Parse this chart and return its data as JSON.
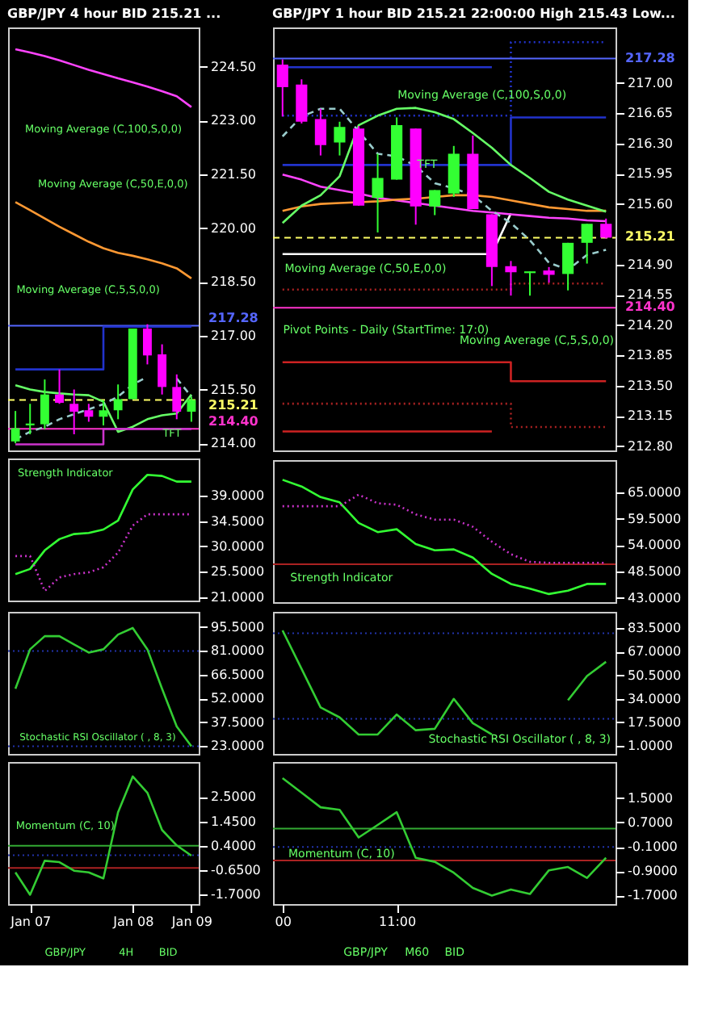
{
  "chart_data": [
    {
      "type": "candlestick",
      "title": "GBP/JPY 4 hour BID 215.21 ...",
      "tick_labels": "y",
      "categories": [
        null,
        null,
        null,
        null,
        null,
        null,
        null,
        null,
        null,
        null,
        null,
        null,
        null
      ],
      "ohlc": [
        [
          214.05,
          214.9,
          214.0,
          214.42
        ],
        [
          214.5,
          215.1,
          214.25,
          214.55
        ],
        [
          214.53,
          215.78,
          214.39,
          215.36
        ],
        [
          215.36,
          216.06,
          215.1,
          215.13
        ],
        [
          215.1,
          215.5,
          214.25,
          214.88
        ],
        [
          214.92,
          215.1,
          214.6,
          214.74
        ],
        [
          214.74,
          215.2,
          214.5,
          214.92
        ],
        [
          214.92,
          215.64,
          214.67,
          215.23
        ],
        [
          215.23,
          217.2,
          215.23,
          217.2
        ],
        [
          217.2,
          217.32,
          216.2,
          216.45
        ],
        [
          216.48,
          216.76,
          215.36,
          215.57
        ],
        [
          215.57,
          215.92,
          214.67,
          214.88
        ],
        [
          214.88,
          215.3,
          214.6,
          215.21
        ]
      ],
      "colors": [
        "#33ff33",
        "#33ff33",
        "#33ff33",
        "#ff00ff",
        "#ff00ff",
        "#ff00ff",
        "#33ff33",
        "#33ff33",
        "#33ff33",
        "#ff00ff",
        "#ff00ff",
        "#ff00ff",
        "#33ff33"
      ],
      "series": [
        {
          "type": "line",
          "color": "#ff44ff",
          "values": [
            224.99,
            224.9,
            224.8,
            224.68,
            224.55,
            224.42,
            224.3,
            224.18,
            224.07,
            223.95,
            223.82,
            223.68,
            223.38
          ]
        },
        {
          "type": "line",
          "color": "#ff9933",
          "values": [
            220.73,
            220.5,
            220.27,
            220.04,
            219.83,
            219.62,
            219.44,
            219.31,
            219.23,
            219.13,
            219.02,
            218.88,
            218.6
          ]
        },
        {
          "type": "line",
          "color": "#66ff66",
          "values": [
            215.62,
            215.5,
            215.43,
            215.39,
            215.36,
            215.34,
            215.16,
            214.32,
            214.46,
            214.67,
            214.78,
            214.83,
            215.36
          ]
        },
        {
          "type": "line",
          "color": "#99cccc",
          "line_style": "dashed",
          "values": [
            214.11,
            214.32,
            214.46,
            214.67,
            214.81,
            214.95,
            215.09,
            215.3,
            215.64,
            215.85,
            null,
            215.81,
            215.3
          ]
        },
        {
          "type": "step",
          "color": "#2233cc",
          "values": [
            216.06,
            216.06,
            216.06,
            216.06,
            216.06,
            216.06,
            217.25,
            217.25,
            217.25,
            217.25,
            217.25,
            217.25,
            217.25
          ]
        },
        {
          "type": "step",
          "color": "#cc33cc",
          "values": [
            213.97,
            213.97,
            213.97,
            213.97,
            213.97,
            213.97,
            214.4,
            214.4,
            214.4,
            214.4,
            214.4,
            214.4,
            214.4
          ]
        }
      ],
      "ylim": [
        213.8,
        225.6
      ],
      "yticks": [
        {
          "value": 214,
          "label": "214.00"
        },
        {
          "value": 215.5,
          "label": "215.50"
        },
        {
          "value": 217,
          "label": "217.00"
        },
        {
          "value": 218.5,
          "label": "218.50"
        },
        {
          "value": 220,
          "label": "220.00"
        },
        {
          "value": 221.5,
          "label": "221.50"
        },
        {
          "value": 223,
          "label": "223.00"
        },
        {
          "value": 224.5,
          "label": "224.50"
        }
      ],
      "ref_lines": [
        {
          "axis": "y",
          "value": 217.28,
          "label": "217.28",
          "color": "#5566ff"
        },
        {
          "axis": "y",
          "value": 215.21,
          "label": "215.21",
          "color": "#ffff66",
          "line_style": "dashed"
        },
        {
          "axis": "y",
          "value": 214.4,
          "label": "214.40",
          "color": "#ff33cc"
        }
      ],
      "annotations": [
        "Moving Average (C,100,S,0,0)",
        "Moving Average (C,50,E,0,0)",
        "Moving Average (C,5,S,0,0)",
        "TFT"
      ]
    },
    {
      "type": "line",
      "tick_labels": "y",
      "categories": [
        null,
        null,
        null,
        null,
        null,
        null,
        null,
        null,
        null,
        null,
        null,
        null,
        null
      ],
      "series": [
        {
          "color": "#33ff33",
          "values": [
            25.1,
            26.0,
            29.3,
            31.3,
            32.2,
            32.4,
            33.0,
            34.6,
            40.1,
            42.7,
            42.5,
            41.5,
            41.5
          ]
        },
        {
          "color": "#cc33cc",
          "line_style": "dotted",
          "values": [
            28.3,
            28.3,
            22.1,
            24.5,
            25.1,
            25.4,
            26.3,
            28.9,
            33.7,
            35.7,
            35.7,
            35.7,
            35.7
          ]
        }
      ],
      "ylim": [
        20.4,
        45.6
      ],
      "yticks": [
        {
          "value": 21,
          "label": "21.0000"
        },
        {
          "value": 25.5,
          "label": "25.5000"
        },
        {
          "value": 30,
          "label": "30.0000"
        },
        {
          "value": 34.5,
          "label": "34.5000"
        },
        {
          "value": 39,
          "label": "39.0000"
        }
      ],
      "annotations": [
        "Strength Indicator"
      ]
    },
    {
      "type": "line",
      "tick_labels": "y",
      "categories": [
        null,
        null,
        null,
        null,
        null,
        null,
        null,
        null,
        null,
        null,
        null,
        null,
        null
      ],
      "series": [
        {
          "color": "#33cc33",
          "values": [
            58,
            82,
            90,
            90,
            85,
            80,
            82,
            91,
            95,
            82,
            58,
            35,
            23
          ]
        }
      ],
      "ylim": [
        18.3,
        104.8
      ],
      "yticks": [
        {
          "value": 23,
          "label": "23.0000"
        },
        {
          "value": 37.5,
          "label": "37.5000"
        },
        {
          "value": 52,
          "label": "52.0000"
        },
        {
          "value": 66.5,
          "label": "66.5000"
        },
        {
          "value": 81,
          "label": "81.0000"
        },
        {
          "value": 95.5,
          "label": "95.5000"
        }
      ],
      "ref_lines": [
        {
          "axis": "y",
          "value": 81,
          "color": "#2233aa",
          "line_style": "dotted"
        },
        {
          "axis": "y",
          "value": 23,
          "color": "#2233aa",
          "line_style": "dotted"
        }
      ],
      "annotations": [
        "Stochastic RSI Oscillator ( , 8, 3)"
      ]
    },
    {
      "type": "line",
      "categories": [
        null,
        "Jan 07",
        null,
        null,
        null,
        null,
        null,
        null,
        "Jan 08",
        null,
        null,
        null,
        "Jan 09"
      ],
      "series": [
        {
          "color": "#33cc33",
          "values": [
            -0.74,
            -1.7,
            -0.24,
            -0.3,
            -0.67,
            -0.74,
            -1.0,
            1.84,
            3.38,
            2.68,
            1.08,
            0.42,
            -0.02
          ]
        }
      ],
      "ylim": [
        -2.1,
        4.0
      ],
      "yticks": [
        {
          "value": -1.7,
          "label": "-1.7000"
        },
        {
          "value": -0.65,
          "label": "-0.6500"
        },
        {
          "value": 0.4,
          "label": "0.4000"
        },
        {
          "value": 1.45,
          "label": "1.4500"
        },
        {
          "value": 2.5,
          "label": "2.5000"
        }
      ],
      "ref_lines": [
        {
          "axis": "y",
          "value": 0.4,
          "color": "#33aa33"
        },
        {
          "axis": "y",
          "value": -0.55,
          "color": "#aa2222"
        },
        {
          "axis": "y",
          "value": 0.0,
          "color": "#2233aa",
          "line_style": "dotted"
        }
      ],
      "annotations": [
        "Momentum (C, 10)",
        "GBP/JPY",
        "4H",
        "BID"
      ]
    },
    {
      "type": "candlestick",
      "title": "GBP/JPY 1 hour BID 215.21 22:00:00 High 215.43 Low...",
      "tick_labels": "y",
      "categories": [
        null,
        null,
        null,
        null,
        null,
        null,
        null,
        null,
        null,
        null,
        null,
        null,
        null,
        null,
        null,
        null,
        null,
        null
      ],
      "ohlc": [
        [
          217.21,
          217.27,
          216.61,
          216.95
        ],
        [
          216.98,
          217.04,
          216.53,
          216.55
        ],
        [
          216.58,
          216.7,
          216.16,
          216.28
        ],
        [
          216.31,
          216.55,
          216.16,
          216.49
        ],
        [
          216.47,
          216.5,
          215.58,
          215.58
        ],
        [
          215.67,
          216.18,
          215.27,
          215.9
        ],
        [
          215.88,
          216.6,
          215.88,
          216.51
        ],
        [
          216.47,
          216.47,
          215.36,
          215.57
        ],
        [
          215.57,
          215.76,
          215.47,
          215.76
        ],
        [
          215.72,
          216.27,
          215.68,
          216.18
        ],
        [
          216.18,
          216.39,
          215.54,
          215.54
        ],
        [
          215.48,
          215.48,
          214.65,
          214.87
        ],
        [
          214.88,
          214.94,
          214.54,
          214.81
        ],
        [
          214.8,
          214.82,
          214.54,
          214.82
        ],
        [
          214.83,
          214.87,
          214.69,
          214.78
        ],
        [
          214.79,
          215.15,
          214.6,
          215.15
        ],
        [
          215.15,
          215.37,
          214.91,
          215.37
        ],
        [
          215.37,
          215.43,
          215.2,
          215.21
        ]
      ],
      "colors": [
        "#ff00ff",
        "#ff00ff",
        "#ff00ff",
        "#33ff33",
        "#ff00ff",
        "#33ff33",
        "#33ff33",
        "#ff00ff",
        "#33ff33",
        "#33ff33",
        "#ff00ff",
        "#ff00ff",
        "#ff00ff",
        "#33ff33",
        "#ff00ff",
        "#33ff33",
        "#33ff33",
        "#ff00ff"
      ],
      "series": [
        {
          "type": "step",
          "color": "#2233cc",
          "values": [
            217.18,
            217.18,
            217.18,
            217.18,
            217.18,
            217.18,
            217.18,
            217.18,
            217.18,
            217.18,
            217.18,
            217.18,
            null,
            null,
            null,
            null,
            null,
            null
          ]
        },
        {
          "type": "step",
          "color": "#2233cc",
          "values": [
            216.05,
            216.05,
            216.05,
            216.05,
            216.05,
            216.05,
            216.05,
            216.05,
            216.05,
            216.05,
            216.05,
            216.05,
            216.6,
            216.6,
            216.6,
            216.6,
            216.6,
            216.6
          ]
        },
        {
          "type": "step",
          "color": "#2233cc",
          "line_style": "dotted",
          "values": [
            216.62,
            216.62,
            216.62,
            216.62,
            216.62,
            216.62,
            216.62,
            216.62,
            216.62,
            216.62,
            216.62,
            216.62,
            217.47,
            217.47,
            217.47,
            217.47,
            217.47,
            217.47
          ]
        },
        {
          "type": "step",
          "color": "#aa2222",
          "line_style": "dotted",
          "values": [
            214.61,
            214.61,
            214.61,
            214.61,
            214.61,
            214.61,
            214.61,
            214.61,
            214.61,
            214.61,
            214.61,
            214.61,
            214.68,
            214.68,
            214.68,
            214.68,
            214.68,
            214.68
          ]
        },
        {
          "type": "step",
          "color": "#cc2222",
          "values": [
            213.77,
            213.77,
            213.77,
            213.77,
            213.77,
            213.77,
            213.77,
            213.77,
            213.77,
            213.77,
            213.77,
            213.77,
            213.55,
            213.55,
            213.55,
            213.55,
            213.55,
            213.55
          ]
        },
        {
          "type": "step",
          "color": "#aa2222",
          "line_style": "dotted",
          "values": [
            213.29,
            213.29,
            213.29,
            213.29,
            213.29,
            213.29,
            213.29,
            213.29,
            213.29,
            213.29,
            213.29,
            213.29,
            213.02,
            213.02,
            213.02,
            213.02,
            213.02,
            213.02
          ]
        },
        {
          "type": "step",
          "color": "#cc2222",
          "values": [
            212.97,
            212.97,
            212.97,
            212.97,
            212.97,
            212.97,
            212.97,
            212.97,
            212.97,
            212.97,
            212.97,
            212.97,
            null,
            null,
            null,
            null,
            null,
            null
          ]
        },
        {
          "type": "line",
          "color": "#ffffff",
          "values": [
            215.02,
            215.02,
            215.02,
            215.02,
            215.02,
            215.02,
            215.02,
            215.02,
            215.02,
            215.02,
            215.02,
            215.02,
            215.49,
            null,
            null,
            null,
            null,
            null
          ]
        },
        {
          "type": "line",
          "color": "#ff44ff",
          "values": [
            215.94,
            215.88,
            215.8,
            215.76,
            215.72,
            215.67,
            215.64,
            215.61,
            215.58,
            215.55,
            215.52,
            215.5,
            215.48,
            215.46,
            215.44,
            215.43,
            215.41,
            215.4
          ]
        },
        {
          "type": "line",
          "color": "#ff9933",
          "values": [
            215.52,
            215.57,
            215.6,
            215.61,
            215.62,
            215.63,
            215.65,
            215.66,
            215.68,
            215.7,
            215.7,
            215.68,
            215.64,
            215.6,
            215.56,
            215.54,
            215.52,
            215.52
          ]
        },
        {
          "type": "line",
          "color": "#66ff66",
          "values": [
            215.38,
            215.58,
            215.7,
            215.92,
            216.51,
            216.62,
            216.7,
            216.71,
            216.66,
            216.58,
            216.42,
            216.25,
            216.05,
            215.9,
            215.74,
            215.65,
            215.58,
            215.51
          ]
        },
        {
          "type": "line",
          "color": "#99cccc",
          "line_style": "dashed",
          "values": [
            216.38,
            216.61,
            216.7,
            216.7,
            216.44,
            216.18,
            216.15,
            216.04,
            215.84,
            215.78,
            215.7,
            215.52,
            215.38,
            215.18,
            214.92,
            214.84,
            215.01,
            215.07
          ]
        }
      ],
      "ylim": [
        212.75,
        217.64
      ],
      "yticks": [
        {
          "value": 212.8,
          "label": "212.80"
        },
        {
          "value": 213.15,
          "label": "213.15"
        },
        {
          "value": 213.5,
          "label": "213.50"
        },
        {
          "value": 213.85,
          "label": "213.85"
        },
        {
          "value": 214.2,
          "label": "214.20"
        },
        {
          "value": 214.55,
          "label": "214.55"
        },
        {
          "value": 214.9,
          "label": "214.90"
        },
        {
          "value": 215.6,
          "label": "215.60"
        },
        {
          "value": 215.95,
          "label": "215.95"
        },
        {
          "value": 216.3,
          "label": "216.30"
        },
        {
          "value": 216.65,
          "label": "216.65"
        },
        {
          "value": 217,
          "label": "217.00"
        }
      ],
      "ref_lines": [
        {
          "axis": "y",
          "value": 217.28,
          "label": "217.28",
          "color": "#5566ff"
        },
        {
          "axis": "y",
          "value": 215.21,
          "label": "215.21",
          "color": "#ffff66",
          "line_style": "dashed"
        },
        {
          "axis": "y",
          "value": 214.4,
          "label": "214.40",
          "color": "#ff33cc"
        }
      ],
      "annotations": [
        "Moving Average (C,100,S,0,0)",
        "Moving Average (C,50,E,0,0)",
        "Pivot Points - Daily (StartTime: 17:0)",
        "Moving Average (C,5,S,0,0)",
        "TFT"
      ]
    },
    {
      "type": "line",
      "tick_labels": "y",
      "categories": [
        null,
        null,
        null,
        null,
        null,
        null,
        null,
        null,
        null,
        null,
        null,
        null,
        null,
        null,
        null,
        null,
        null,
        null
      ],
      "series": [
        {
          "color": "#33ff33",
          "values": [
            67.6,
            66.2,
            64.0,
            62.9,
            58.6,
            56.7,
            57.3,
            54.2,
            52.9,
            53.1,
            51.4,
            48.0,
            45.9,
            44.9,
            43.8,
            44.5,
            45.9,
            45.9
          ]
        },
        {
          "color": "#cc33cc",
          "line_style": "dotted",
          "values": [
            62.1,
            62.1,
            62.1,
            62.1,
            64.5,
            62.7,
            62.4,
            60.4,
            59.3,
            59.3,
            57.8,
            54.7,
            52.1,
            50.5,
            50.3,
            50.3,
            50.3,
            50.3
          ]
        }
      ],
      "ylim": [
        42.1,
        71.7
      ],
      "yticks": [
        {
          "value": 43,
          "label": "43.0000"
        },
        {
          "value": 48.5,
          "label": "48.5000"
        },
        {
          "value": 54,
          "label": "54.0000"
        },
        {
          "value": 59.5,
          "label": "59.5000"
        },
        {
          "value": 65,
          "label": "65.0000"
        }
      ],
      "ref_lines": [
        {
          "axis": "y",
          "value": 50,
          "color": "#aa2222"
        }
      ],
      "annotations": [
        "Strength Indicator"
      ]
    },
    {
      "type": "line",
      "tick_labels": "y",
      "categories": [
        null,
        null,
        null,
        null,
        null,
        null,
        null,
        null,
        null,
        null,
        null,
        null,
        null,
        null,
        null,
        null,
        null,
        null
      ],
      "series": [
        {
          "color": "#33cc33",
          "values": [
            82,
            55,
            28,
            21,
            9,
            9,
            23,
            12,
            13,
            34,
            17,
            9,
            null,
            null,
            null,
            33,
            50,
            60
          ]
        }
      ],
      "ylim": [
        -4.6,
        95
      ],
      "yticks": [
        {
          "value": 1,
          "label": "1.0000"
        },
        {
          "value": 17.5,
          "label": "17.5000"
        },
        {
          "value": 34,
          "label": "34.0000"
        },
        {
          "value": 50.5,
          "label": "50.5000"
        },
        {
          "value": 67,
          "label": "67.0000"
        },
        {
          "value": 83.5,
          "label": "83.5000"
        }
      ],
      "ref_lines": [
        {
          "axis": "y",
          "value": 80,
          "color": "#2233aa",
          "line_style": "dotted"
        },
        {
          "axis": "y",
          "value": 20,
          "color": "#2233aa",
          "line_style": "dotted"
        }
      ],
      "annotations": [
        "Stochastic RSI Oscillator ( , 8, 3)"
      ]
    },
    {
      "type": "line",
      "categories": [
        "00",
        null,
        null,
        null,
        null,
        null,
        "11:00",
        null,
        null,
        null,
        null,
        null,
        null,
        null,
        null,
        null,
        null,
        null
      ],
      "series": [
        {
          "color": "#33cc33",
          "values": [
            2.16,
            1.68,
            1.2,
            1.12,
            0.21,
            0.62,
            1.04,
            -0.46,
            -0.59,
            -0.95,
            -1.45,
            -1.7,
            -1.5,
            -1.65,
            -0.87,
            -0.76,
            -1.12,
            -0.46
          ]
        }
      ],
      "ylim": [
        -1.98,
        2.69
      ],
      "yticks": [
        {
          "value": -1.7,
          "label": "-1.7000"
        },
        {
          "value": -0.9,
          "label": "-0.9000"
        },
        {
          "value": -0.1,
          "label": "-0.1000"
        },
        {
          "value": 0.7,
          "label": "0.7000"
        },
        {
          "value": 1.5,
          "label": "1.5000"
        }
      ],
      "ref_lines": [
        {
          "axis": "y",
          "value": 0.5,
          "color": "#33aa33"
        },
        {
          "axis": "y",
          "value": -0.55,
          "color": "#aa2222"
        },
        {
          "axis": "y",
          "value": -0.1,
          "color": "#2233aa",
          "line_style": "dotted"
        }
      ],
      "annotations": [
        "Momentum (C, 10)",
        "GBP/JPY",
        "M60",
        "BID"
      ]
    }
  ]
}
